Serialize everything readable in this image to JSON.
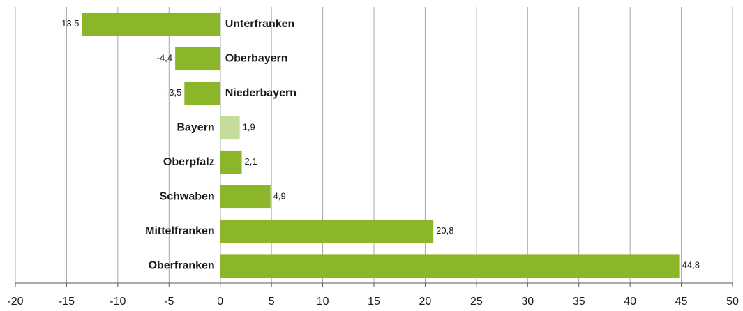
{
  "chart_data": {
    "type": "barh",
    "categories": [
      "Unterfranken",
      "Oberbayern",
      "Niederbayern",
      "Bayern",
      "Oberpfalz",
      "Schwaben",
      "Mittelfranken",
      "Oberfranken"
    ],
    "values": [
      -13.5,
      -4.4,
      -3.5,
      1.9,
      2.1,
      4.9,
      20.8,
      44.8
    ],
    "value_labels": [
      "-13,5",
      "-4,4",
      "-3,5",
      "1,9",
      "2,1",
      "4,9",
      "20,8",
      "44,8"
    ],
    "colors": [
      "#8cb62a",
      "#8cb62a",
      "#8cb62a",
      "#c3dc9a",
      "#8cb62a",
      "#8cb62a",
      "#8cb62a",
      "#8cb62a"
    ],
    "xlim": [
      -20,
      50
    ],
    "xticks": [
      -20,
      -15,
      -10,
      -5,
      0,
      5,
      10,
      15,
      20,
      25,
      30,
      35,
      40,
      45,
      50
    ],
    "grid": true
  }
}
